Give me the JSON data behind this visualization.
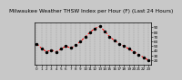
{
  "title": "Milwaukee Weather THSW Index per Hour (F) (Last 24 Hours)",
  "hours": [
    0,
    1,
    2,
    3,
    4,
    5,
    6,
    7,
    8,
    9,
    10,
    11,
    12,
    13,
    14,
    15,
    16,
    17,
    18,
    19,
    20,
    21,
    22,
    23
  ],
  "values": [
    55,
    45,
    38,
    42,
    38,
    44,
    50,
    46,
    52,
    60,
    70,
    80,
    88,
    92,
    82,
    70,
    62,
    55,
    50,
    44,
    38,
    32,
    26,
    20
  ],
  "line_color": "#ff0000",
  "marker_color": "#000000",
  "bg_color": "#c8c8c8",
  "plot_bg": "#c8c8c8",
  "grid_color": "#888888",
  "title_color": "#000000",
  "title_fontsize": 4.2,
  "ylim": [
    10,
    100
  ],
  "ytick_values": [
    20,
    30,
    40,
    50,
    60,
    70,
    80,
    90
  ],
  "ytick_labels": [
    "20",
    "30",
    "40",
    "50",
    "60",
    "70",
    "80",
    "90"
  ],
  "xlabel_fontsize": 3.0,
  "ylabel_fontsize": 3.0,
  "line_width": 0.7,
  "marker_size": 1.5
}
